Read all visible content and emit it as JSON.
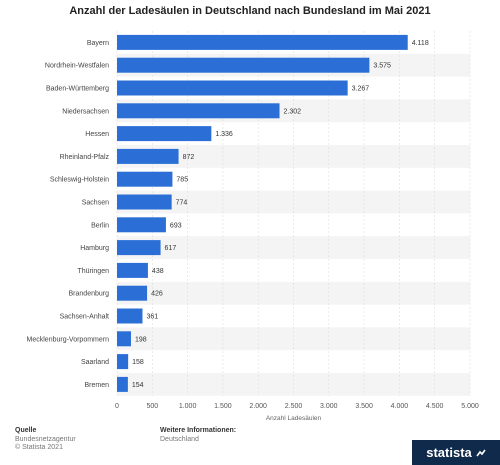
{
  "chart_data": {
    "type": "bar",
    "orientation": "horizontal",
    "title": "Anzahl der Ladesäulen in Deutschland nach Bundesland im Mai 2021",
    "xlabel": "Anzahl Ladesäulen",
    "ylabel": "",
    "xlim": [
      0,
      5000
    ],
    "xticks": [
      "0",
      "500",
      "1.000",
      "1.500",
      "2.000",
      "2.500",
      "3.000",
      "3.500",
      "4.000",
      "4.500",
      "5.000"
    ],
    "categories": [
      "Bayern",
      "Nordrhein-Westfalen",
      "Baden-Württemberg",
      "Niedersachsen",
      "Hessen",
      "Rheinland-Pfalz",
      "Schleswig-Holstein",
      "Sachsen",
      "Berlin",
      "Hamburg",
      "Thüringen",
      "Brandenburg",
      "Sachsen-Anhalt",
      "Mecklenburg-Vorpommern",
      "Saarland",
      "Bremen"
    ],
    "values": [
      4118,
      3575,
      3267,
      2302,
      1336,
      872,
      785,
      774,
      693,
      617,
      438,
      426,
      361,
      198,
      158,
      154
    ],
    "value_labels": [
      "4.118",
      "3.575",
      "3.267",
      "2.302",
      "1.336",
      "872",
      "785",
      "774",
      "693",
      "617",
      "438",
      "426",
      "361",
      "198",
      "158",
      "154"
    ],
    "bar_color": "#2b6fd6",
    "stripe_color": "#f4f4f4",
    "grid": true
  },
  "footer": {
    "source_label": "Quelle",
    "source_lines": [
      "Bundesnetzagentur",
      "© Statista 2021"
    ],
    "info_label": "Weitere Informationen:",
    "info_text": "Deutschland",
    "brand": "statista"
  }
}
